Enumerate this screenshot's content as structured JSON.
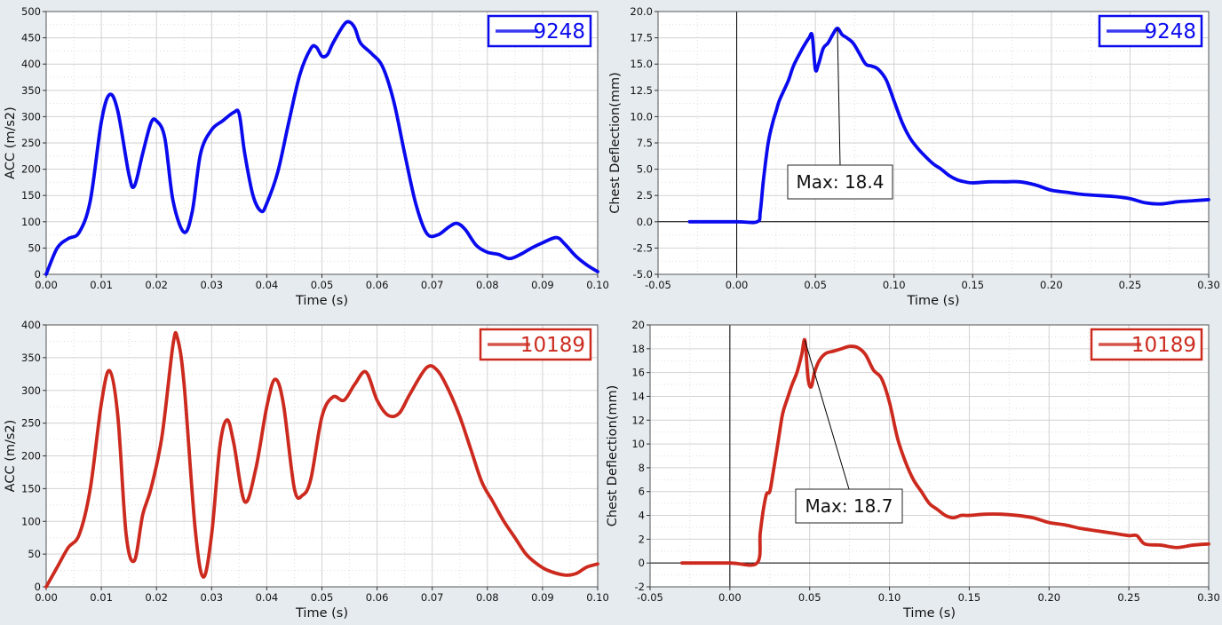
{
  "chart_data": [
    {
      "type": "line",
      "xlabel": "Time (s)",
      "ylabel": "ACC (m/s2)",
      "xlim": [
        0,
        0.1
      ],
      "ylim": [
        0,
        500
      ],
      "xticks": [
        0,
        0.01,
        0.02,
        0.03,
        0.04,
        0.05,
        0.06,
        0.07,
        0.08,
        0.09,
        0.1
      ],
      "yticks": [
        0,
        50,
        100,
        150,
        200,
        250,
        300,
        350,
        400,
        450,
        500
      ],
      "xtick_labels": [
        "0.00",
        "0.01",
        "0.02",
        "0.03",
        "0.04",
        "0.05",
        "0.06",
        "0.07",
        "0.08",
        "0.09",
        "0.10"
      ],
      "ytick_labels": [
        "0",
        "50",
        "100",
        "150",
        "200",
        "250",
        "300",
        "350",
        "400",
        "450",
        "500"
      ],
      "grid": true,
      "legend_position": "top-right",
      "series": [
        {
          "name": "9248",
          "color": "#0a0aee",
          "x": [
            0,
            0.002,
            0.004,
            0.006,
            0.008,
            0.01,
            0.0115,
            0.013,
            0.015,
            0.016,
            0.0175,
            0.019,
            0.02,
            0.0215,
            0.023,
            0.025,
            0.0265,
            0.028,
            0.03,
            0.032,
            0.034,
            0.035,
            0.036,
            0.0375,
            0.039,
            0.04,
            0.042,
            0.044,
            0.046,
            0.048,
            0.049,
            0.05,
            0.051,
            0.052,
            0.054,
            0.055,
            0.056,
            0.057,
            0.059,
            0.061,
            0.063,
            0.065,
            0.067,
            0.069,
            0.071,
            0.073,
            0.0745,
            0.076,
            0.078,
            0.08,
            0.082,
            0.084,
            0.086,
            0.088,
            0.09,
            0.0925,
            0.094,
            0.096,
            0.098,
            0.1
          ],
          "y": [
            0,
            50,
            68,
            80,
            140,
            290,
            342,
            310,
            190,
            168,
            230,
            288,
            292,
            260,
            140,
            80,
            120,
            230,
            275,
            292,
            308,
            305,
            230,
            150,
            120,
            135,
            195,
            290,
            380,
            430,
            432,
            415,
            418,
            440,
            475,
            480,
            468,
            440,
            420,
            395,
            330,
            230,
            135,
            78,
            75,
            90,
            97,
            85,
            55,
            42,
            38,
            30,
            38,
            50,
            60,
            70,
            58,
            35,
            18,
            5
          ]
        }
      ]
    },
    {
      "type": "line",
      "xlabel": "Time (s)",
      "ylabel": "Chest Deflection(mm)",
      "xlim": [
        -0.05,
        0.3
      ],
      "ylim": [
        -5,
        20
      ],
      "xticks": [
        -0.05,
        0,
        0.05,
        0.1,
        0.15,
        0.2,
        0.25,
        0.3
      ],
      "yticks": [
        -5,
        -2.5,
        0,
        2.5,
        5,
        7.5,
        10,
        12.5,
        15,
        17.5,
        20
      ],
      "xtick_labels": [
        "-0.05",
        "0.00",
        "0.05",
        "0.10",
        "0.15",
        "0.20",
        "0.25",
        "0.30"
      ],
      "ytick_labels": [
        "-5.0",
        "-2.5",
        "0.0",
        "2.5",
        "5.0",
        "7.5",
        "10.0",
        "12.5",
        "15.0",
        "17.5",
        "20.0"
      ],
      "grid": true,
      "legend_position": "top-right",
      "annotation": {
        "text": "Max: 18.4",
        "x": 0.064,
        "y": 18.4
      },
      "series": [
        {
          "name": "9248",
          "color": "#0a0aee",
          "x": [
            -0.03,
            0.0,
            0.013,
            0.015,
            0.017,
            0.02,
            0.023,
            0.025,
            0.027,
            0.03,
            0.033,
            0.036,
            0.04,
            0.043,
            0.046,
            0.048,
            0.05,
            0.052,
            0.055,
            0.058,
            0.061,
            0.064,
            0.067,
            0.07,
            0.074,
            0.078,
            0.082,
            0.086,
            0.09,
            0.095,
            0.1,
            0.105,
            0.11,
            0.115,
            0.12,
            0.125,
            0.13,
            0.135,
            0.14,
            0.145,
            0.15,
            0.16,
            0.17,
            0.18,
            0.19,
            0.2,
            0.21,
            0.22,
            0.23,
            0.24,
            0.25,
            0.26,
            0.27,
            0.28,
            0.29,
            0.3
          ],
          "y": [
            0,
            0,
            0,
            1.0,
            4.0,
            7.5,
            9.5,
            10.5,
            11.5,
            12.5,
            13.5,
            14.8,
            16.0,
            16.8,
            17.5,
            17.7,
            14.5,
            15.0,
            16.5,
            17.0,
            17.8,
            18.4,
            17.8,
            17.5,
            17.0,
            16.0,
            15.0,
            14.8,
            14.5,
            13.5,
            11.5,
            9.5,
            8.0,
            7.0,
            6.2,
            5.5,
            5.0,
            4.4,
            4.0,
            3.8,
            3.7,
            3.8,
            3.8,
            3.8,
            3.5,
            3.0,
            2.8,
            2.6,
            2.5,
            2.4,
            2.2,
            1.8,
            1.7,
            1.9,
            2.0,
            2.1
          ]
        }
      ]
    },
    {
      "type": "line",
      "xlabel": "Time (s)",
      "ylabel": "ACC (m/s2)",
      "xlim": [
        0,
        0.1
      ],
      "ylim": [
        0,
        400
      ],
      "xticks": [
        0,
        0.01,
        0.02,
        0.03,
        0.04,
        0.05,
        0.06,
        0.07,
        0.08,
        0.09,
        0.1
      ],
      "yticks": [
        0,
        50,
        100,
        150,
        200,
        250,
        300,
        350,
        400
      ],
      "xtick_labels": [
        "0.00",
        "0.01",
        "0.02",
        "0.03",
        "0.04",
        "0.05",
        "0.06",
        "0.07",
        "0.08",
        "0.09",
        "0.10"
      ],
      "ytick_labels": [
        "0",
        "50",
        "100",
        "150",
        "200",
        "250",
        "300",
        "350",
        "400"
      ],
      "grid": true,
      "legend_position": "top-right",
      "series": [
        {
          "name": "10189",
          "color": "#cc2a1e",
          "x": [
            0,
            0.002,
            0.004,
            0.006,
            0.008,
            0.01,
            0.0115,
            0.013,
            0.0145,
            0.016,
            0.0175,
            0.019,
            0.021,
            0.023,
            0.0238,
            0.025,
            0.027,
            0.0285,
            0.03,
            0.0315,
            0.0328,
            0.034,
            0.036,
            0.038,
            0.04,
            0.0415,
            0.043,
            0.045,
            0.0465,
            0.048,
            0.05,
            0.052,
            0.054,
            0.056,
            0.058,
            0.06,
            0.062,
            0.064,
            0.066,
            0.069,
            0.071,
            0.073,
            0.075,
            0.077,
            0.079,
            0.081,
            0.083,
            0.085,
            0.087,
            0.089,
            0.091,
            0.094,
            0.096,
            0.098,
            0.1
          ],
          "y": [
            0,
            30,
            60,
            80,
            150,
            280,
            330,
            260,
            80,
            40,
            110,
            150,
            230,
            370,
            380,
            310,
            90,
            15,
            80,
            215,
            255,
            220,
            130,
            180,
            275,
            317,
            280,
            150,
            140,
            165,
            260,
            290,
            285,
            310,
            328,
            285,
            262,
            265,
            295,
            335,
            330,
            300,
            260,
            210,
            160,
            130,
            100,
            75,
            50,
            35,
            25,
            18,
            20,
            30,
            35
          ]
        }
      ]
    },
    {
      "type": "line",
      "xlabel": "Time (s)",
      "ylabel": "Chest Deflection(mm)",
      "xlim": [
        -0.05,
        0.3
      ],
      "ylim": [
        -2,
        20
      ],
      "xticks": [
        -0.05,
        0,
        0.05,
        0.1,
        0.15,
        0.2,
        0.25,
        0.3
      ],
      "yticks": [
        -2,
        0,
        2,
        4,
        6,
        8,
        10,
        12,
        14,
        16,
        18,
        20
      ],
      "xtick_labels": [
        "-0.05",
        "0.00",
        "0.05",
        "0.10",
        "0.15",
        "0.20",
        "0.25",
        "0.30"
      ],
      "ytick_labels": [
        "-2",
        "0",
        "2",
        "4",
        "6",
        "8",
        "10",
        "12",
        "14",
        "16",
        "18",
        "20"
      ],
      "grid": true,
      "legend_position": "top-right",
      "annotation": {
        "text": "Max: 18.7",
        "x": 0.047,
        "y": 18.7
      },
      "series": [
        {
          "name": "10189",
          "color": "#cc2a1e",
          "x": [
            -0.03,
            0.0,
            0.017,
            0.019,
            0.021,
            0.023,
            0.025,
            0.027,
            0.03,
            0.033,
            0.036,
            0.039,
            0.042,
            0.045,
            0.047,
            0.049,
            0.051,
            0.053,
            0.056,
            0.06,
            0.065,
            0.07,
            0.075,
            0.08,
            0.085,
            0.09,
            0.095,
            0.1,
            0.105,
            0.11,
            0.115,
            0.12,
            0.125,
            0.13,
            0.135,
            0.14,
            0.145,
            0.15,
            0.16,
            0.17,
            0.18,
            0.19,
            0.2,
            0.21,
            0.22,
            0.23,
            0.24,
            0.25,
            0.255,
            0.26,
            0.27,
            0.28,
            0.29,
            0.3
          ],
          "y": [
            0,
            0,
            0,
            2.5,
            4.5,
            5.8,
            6.0,
            7.5,
            10.0,
            12.5,
            13.8,
            15.0,
            16.0,
            17.5,
            18.7,
            15.5,
            14.8,
            16.0,
            17.0,
            17.6,
            17.8,
            18.0,
            18.2,
            18.1,
            17.5,
            16.2,
            15.5,
            13.5,
            10.5,
            8.5,
            7.0,
            6.0,
            5.0,
            4.5,
            4.0,
            3.8,
            4.0,
            4.0,
            4.1,
            4.1,
            4.0,
            3.8,
            3.4,
            3.2,
            2.9,
            2.7,
            2.5,
            2.3,
            2.3,
            1.6,
            1.5,
            1.3,
            1.5,
            1.6
          ]
        }
      ]
    }
  ]
}
